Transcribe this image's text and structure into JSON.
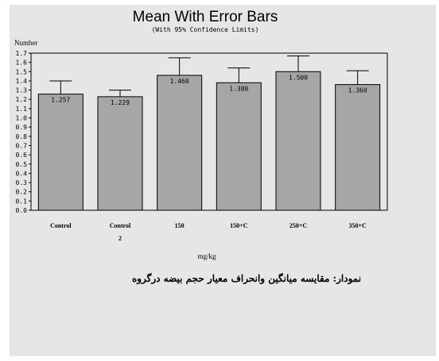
{
  "chart_data": {
    "type": "bar",
    "title": "Mean With Error Bars",
    "subtitle": "(With 95% Confidence Limits)",
    "ylabel": "Number",
    "xlabel": "mg/kg",
    "ylim": [
      0,
      1.7
    ],
    "yticks": [
      "0.0",
      "0.1",
      "0.2",
      "0.3",
      "0.4",
      "0.5",
      "0.6",
      "0.7",
      "0.8",
      "0.9",
      "1.0",
      "1.1",
      "1.2",
      "1.3",
      "1.4",
      "1.5",
      "1.6",
      "1.7"
    ],
    "categories": [
      {
        "line1": "Control",
        "line2": ""
      },
      {
        "line1": "Control",
        "line2": "2"
      },
      {
        "line1": "150",
        "line2": ""
      },
      {
        "line1": "150+C",
        "line2": ""
      },
      {
        "line1": "250+C",
        "line2": ""
      },
      {
        "line1": "350+C",
        "line2": ""
      }
    ],
    "values": [
      1.257,
      1.229,
      1.46,
      1.38,
      1.5,
      1.36
    ],
    "labels": [
      "1.257",
      "1.229",
      "1.460",
      "1.380",
      "1.500",
      "1.360"
    ],
    "upper": [
      1.4,
      1.3,
      1.65,
      1.54,
      1.67,
      1.51
    ],
    "bar_color": "#a6a6a6",
    "grid": false,
    "legend": "none"
  },
  "caption": "نمودار: مقایسه میانگین وانحراف معیار حجم بیضه درگروه"
}
